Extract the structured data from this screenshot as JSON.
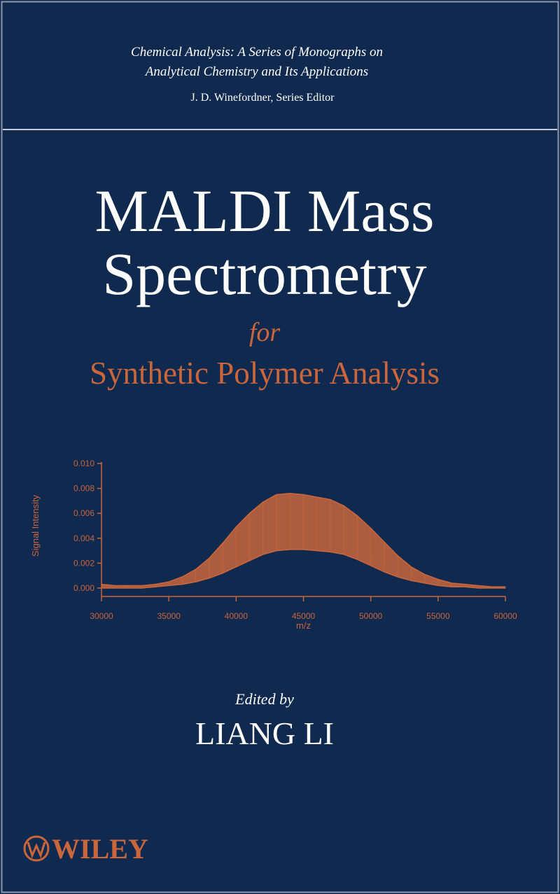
{
  "series_info": {
    "line1": "Chemical Analysis: A Series of Monographs on",
    "line2": "Analytical Chemistry and Its Applications",
    "editor": "J. D. Winefordner, Series Editor"
  },
  "title": {
    "line1": "MALDI Mass",
    "line2": "Spectrometry",
    "connector": "for",
    "subtitle": "Synthetic Polymer Analysis"
  },
  "chart_data": {
    "type": "band",
    "x_label": "m/z",
    "y_label": "Signal Intensity",
    "x": [
      30000,
      31000,
      32000,
      33000,
      34000,
      35000,
      36000,
      37000,
      38000,
      39000,
      40000,
      41000,
      42000,
      43000,
      44000,
      45000,
      46000,
      47000,
      48000,
      49000,
      50000,
      51000,
      52000,
      53000,
      54000,
      55000,
      56000,
      57000,
      58000,
      59000,
      60000
    ],
    "series": [
      {
        "color": "#c9663c",
        "values": [
          0.0003,
          0.0002,
          0.0002,
          0.0002,
          0.0003,
          0.0005,
          0.0009,
          0.0015,
          0.0024,
          0.0036,
          0.0049,
          0.006,
          0.0069,
          0.0075,
          0.0076,
          0.0075,
          0.0073,
          0.0071,
          0.0066,
          0.0058,
          0.0048,
          0.0037,
          0.0026,
          0.0017,
          0.0011,
          0.0007,
          0.0004,
          0.0003,
          0.0002,
          0.0001,
          0.0001
        ]
      },
      {
        "color": "#c9663c",
        "values": [
          0,
          0,
          0,
          0,
          0.0001,
          0.0002,
          0.0003,
          0.0005,
          0.0008,
          0.0012,
          0.0017,
          0.0022,
          0.0027,
          0.003,
          0.0031,
          0.0031,
          0.003,
          0.0029,
          0.0027,
          0.0023,
          0.0018,
          0.0013,
          0.0009,
          0.0006,
          0.0004,
          0.0002,
          0.0001,
          0.0001,
          0,
          0,
          0
        ]
      }
    ],
    "xlim": [
      30000,
      60000
    ],
    "ylim": [
      0,
      0.01
    ],
    "xticks": [
      30000,
      35000,
      40000,
      45000,
      50000,
      55000,
      60000
    ],
    "yticks": [
      {
        "value": 0,
        "label": "0.000"
      },
      {
        "value": 0.002,
        "label": "0.002"
      },
      {
        "value": 0.004,
        "label": "0.004"
      },
      {
        "value": 0.006,
        "label": "0.006"
      },
      {
        "value": 0.008,
        "label": "0.008"
      },
      {
        "value": 0.01,
        "label": "0.010"
      }
    ],
    "axis_color": "#c9663c"
  },
  "credits": {
    "edited_by": "Edited by",
    "editor": "LIANG LI"
  },
  "publisher": "WILEY"
}
